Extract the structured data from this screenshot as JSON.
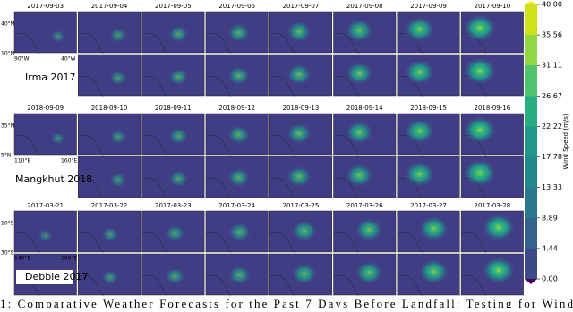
{
  "figure": {
    "groups": [
      {
        "name": "Irma 2017",
        "dates": [
          "2017-09-03",
          "2017-09-04",
          "2017-09-05",
          "2017-09-06",
          "2017-09-07",
          "2017-09-08",
          "2017-09-09",
          "2017-09-10"
        ],
        "lat_labels": [
          "40°N",
          "10°N"
        ],
        "lon_labels": [
          "90°W",
          "40°W"
        ]
      },
      {
        "name": "Mangkhut 2018",
        "dates": [
          "2018-09-09",
          "2018-09-10",
          "2018-09-11",
          "2018-09-12",
          "2018-09-13",
          "2018-09-14",
          "2018-09-15",
          "2018-09-16"
        ],
        "lat_labels": [
          "35°N",
          "5°N"
        ],
        "lon_labels": [
          "110°E",
          "160°E"
        ]
      },
      {
        "name": "Debbie 2017",
        "dates": [
          "2017-03-21",
          "2017-03-22",
          "2017-03-23",
          "2017-03-24",
          "2017-03-25",
          "2017-03-26",
          "2017-03-27",
          "2017-03-28"
        ],
        "lat_labels": [
          "10°S",
          "30°S"
        ],
        "lon_labels": [
          "140°E",
          "160°E"
        ]
      }
    ],
    "colorbar": {
      "label": "Wind Speed (m/s)",
      "ticks": [
        "40.00",
        "35.56",
        "31.11",
        "26.67",
        "22.22",
        "17.78",
        "13.33",
        "8.89",
        "4.44",
        "0.00"
      ]
    },
    "caption": "1: Comparative Weather Forecasts for the Past 7 Days Before Landfall: Testing for Wind"
  }
}
